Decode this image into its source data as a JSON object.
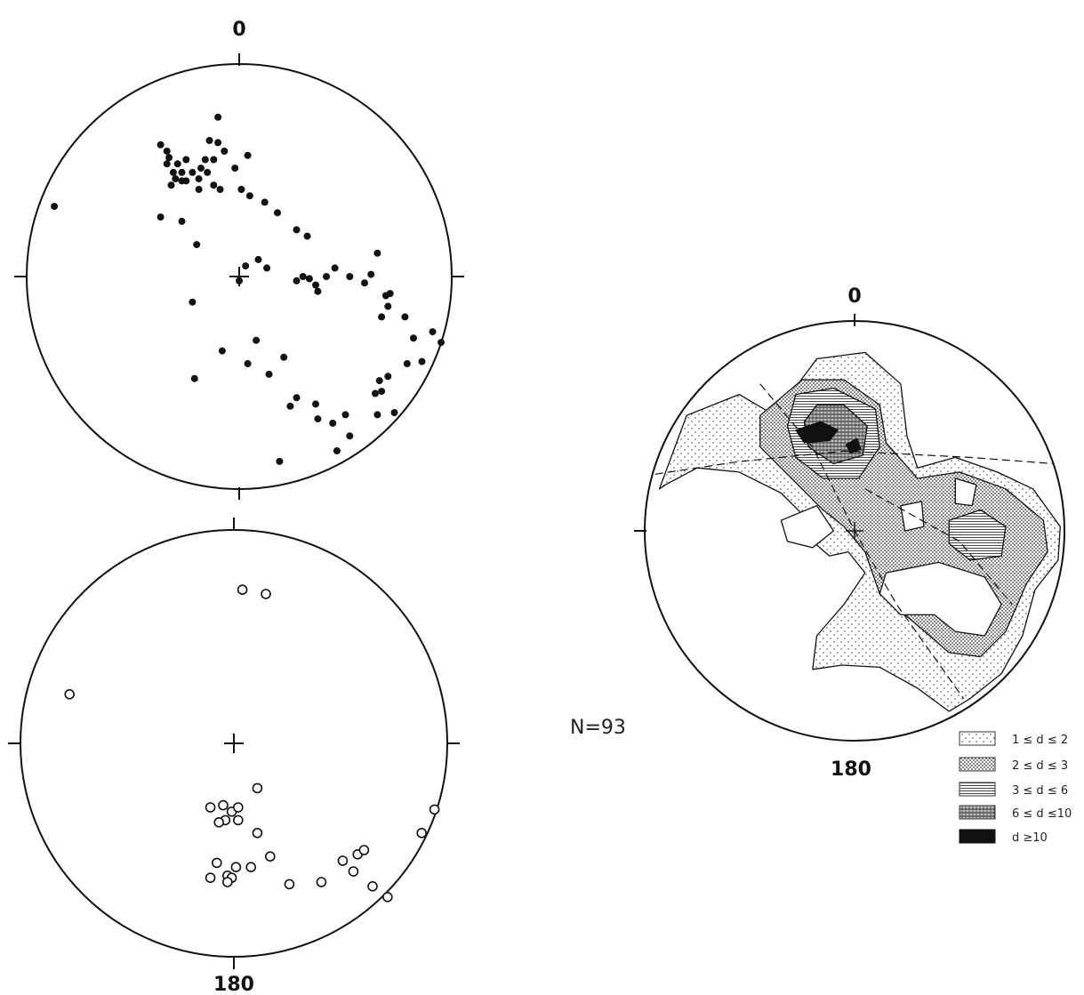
{
  "chart_data": [
    {
      "type": "scatter",
      "marker": "filled-dot",
      "labels": {
        "top": "0"
      },
      "points": [
        [
          -0.87,
          -0.33
        ],
        [
          -0.37,
          -0.62
        ],
        [
          -0.34,
          -0.59
        ],
        [
          -0.33,
          -0.56
        ],
        [
          -0.34,
          -0.53
        ],
        [
          -0.29,
          -0.53
        ],
        [
          -0.25,
          -0.55
        ],
        [
          -0.31,
          -0.49
        ],
        [
          -0.27,
          -0.49
        ],
        [
          -0.22,
          -0.49
        ],
        [
          -0.18,
          -0.51
        ],
        [
          -0.27,
          -0.45
        ],
        [
          -0.32,
          -0.43
        ],
        [
          -0.3,
          -0.46
        ],
        [
          -0.25,
          -0.45
        ],
        [
          -0.19,
          -0.46
        ],
        [
          -0.15,
          -0.49
        ],
        [
          -0.12,
          -0.55
        ],
        [
          -0.1,
          -0.63
        ],
        [
          -0.07,
          -0.59
        ],
        [
          -0.14,
          -0.64
        ],
        [
          -0.1,
          -0.75
        ],
        [
          -0.16,
          -0.55
        ],
        [
          -0.12,
          -0.43
        ],
        [
          -0.02,
          -0.51
        ],
        [
          0.04,
          -0.57
        ],
        [
          -0.19,
          -0.41
        ],
        [
          -0.09,
          -0.41
        ],
        [
          0.01,
          -0.41
        ],
        [
          0.05,
          -0.38
        ],
        [
          0.12,
          -0.35
        ],
        [
          0.18,
          -0.3
        ],
        [
          -0.37,
          -0.28
        ],
        [
          -0.27,
          -0.26
        ],
        [
          -0.2,
          -0.15
        ],
        [
          0.32,
          -0.19
        ],
        [
          0.27,
          -0.22
        ],
        [
          0.03,
          -0.05
        ],
        [
          0.09,
          -0.08
        ],
        [
          0.0,
          0.02
        ],
        [
          0.13,
          -0.04
        ],
        [
          0.37,
          0.07
        ],
        [
          -0.22,
          0.12
        ],
        [
          0.27,
          0.02
        ],
        [
          0.3,
          0.0
        ],
        [
          0.33,
          0.01
        ],
        [
          0.36,
          0.04
        ],
        [
          0.41,
          0.0
        ],
        [
          0.45,
          -0.04
        ],
        [
          0.52,
          0.0
        ],
        [
          0.59,
          0.03
        ],
        [
          0.62,
          -0.01
        ],
        [
          0.65,
          -0.11
        ],
        [
          0.71,
          0.08
        ],
        [
          0.69,
          0.09
        ],
        [
          0.7,
          0.14
        ],
        [
          0.67,
          0.19
        ],
        [
          0.08,
          0.3
        ],
        [
          0.78,
          0.19
        ],
        [
          0.91,
          0.26
        ],
        [
          0.82,
          0.29
        ],
        [
          0.95,
          0.31
        ],
        [
          0.86,
          0.4
        ],
        [
          0.79,
          0.41
        ],
        [
          0.7,
          0.47
        ],
        [
          0.66,
          0.49
        ],
        [
          0.67,
          0.54
        ],
        [
          0.64,
          0.55
        ],
        [
          -0.08,
          0.35
        ],
        [
          0.21,
          0.38
        ],
        [
          -0.21,
          0.48
        ],
        [
          0.04,
          0.41
        ],
        [
          0.14,
          0.46
        ],
        [
          0.27,
          0.57
        ],
        [
          0.24,
          0.61
        ],
        [
          0.36,
          0.6
        ],
        [
          0.44,
          0.69
        ],
        [
          0.5,
          0.65
        ],
        [
          0.73,
          0.64
        ],
        [
          0.65,
          0.65
        ],
        [
          0.37,
          0.67
        ],
        [
          0.52,
          0.75
        ],
        [
          0.46,
          0.82
        ],
        [
          0.19,
          0.87
        ]
      ]
    },
    {
      "type": "scatter",
      "marker": "open-circle",
      "labels": {
        "bottom": "180"
      },
      "points": [
        [
          0.04,
          -0.72
        ],
        [
          0.15,
          -0.7
        ],
        [
          -0.77,
          -0.23
        ],
        [
          0.11,
          0.21
        ],
        [
          -0.11,
          0.3
        ],
        [
          -0.01,
          0.32
        ],
        [
          -0.05,
          0.29
        ],
        [
          0.02,
          0.3
        ],
        [
          -0.04,
          0.36
        ],
        [
          -0.07,
          0.37
        ],
        [
          0.02,
          0.36
        ],
        [
          0.11,
          0.42
        ],
        [
          0.17,
          0.53
        ],
        [
          0.08,
          0.58
        ],
        [
          0.01,
          0.58
        ],
        [
          -0.08,
          0.56
        ],
        [
          -0.11,
          0.63
        ],
        [
          -0.03,
          0.62
        ],
        [
          -0.01,
          0.63
        ],
        [
          -0.03,
          0.65
        ],
        [
          0.26,
          0.66
        ],
        [
          0.41,
          0.65
        ],
        [
          0.51,
          0.55
        ],
        [
          0.58,
          0.52
        ],
        [
          0.61,
          0.5
        ],
        [
          0.56,
          0.6
        ],
        [
          0.65,
          0.67
        ],
        [
          0.72,
          0.72
        ],
        [
          0.88,
          0.42
        ],
        [
          0.94,
          0.31
        ]
      ]
    },
    {
      "type": "contour",
      "n_label": "N=93",
      "labels": {
        "top": "0",
        "bottom": "180"
      },
      "legend": [
        {
          "label": "1 ≤ d ≤ 2",
          "pattern": "dots-sparse"
        },
        {
          "label": "2 ≤ d ≤ 3",
          "pattern": "dots-dense"
        },
        {
          "label": "3 ≤ d ≤ 6",
          "pattern": "hlines"
        },
        {
          "label": "6 ≤ d ≤10",
          "pattern": "crosshatch"
        },
        {
          "label": "d ≥10",
          "pattern": "solid"
        }
      ],
      "contours": [
        {
          "level": 1,
          "polygons": [
            [
              [
                -0.93,
                -0.2
              ],
              [
                -0.8,
                -0.55
              ],
              [
                -0.55,
                -0.65
              ],
              [
                -0.38,
                -0.55
              ],
              [
                -0.18,
                -0.82
              ],
              [
                0.05,
                -0.85
              ],
              [
                0.22,
                -0.7
              ],
              [
                0.25,
                -0.45
              ],
              [
                0.3,
                -0.3
              ],
              [
                0.48,
                -0.35
              ],
              [
                0.68,
                -0.28
              ],
              [
                0.85,
                -0.2
              ],
              [
                0.98,
                -0.02
              ],
              [
                0.97,
                0.14
              ],
              [
                0.86,
                0.28
              ],
              [
                0.8,
                0.5
              ],
              [
                0.7,
                0.68
              ],
              [
                0.55,
                0.8
              ],
              [
                0.45,
                0.86
              ],
              [
                0.3,
                0.75
              ],
              [
                0.12,
                0.65
              ],
              [
                -0.06,
                0.64
              ],
              [
                -0.2,
                0.66
              ],
              [
                -0.18,
                0.5
              ],
              [
                -0.05,
                0.35
              ],
              [
                0.05,
                0.2
              ],
              [
                -0.03,
                0.1
              ],
              [
                -0.12,
                0.12
              ],
              [
                -0.2,
                0.05
              ],
              [
                -0.25,
                -0.08
              ],
              [
                -0.35,
                -0.18
              ],
              [
                -0.55,
                -0.28
              ],
              [
                -0.75,
                -0.3
              ],
              [
                -0.9,
                -0.22
              ]
            ]
          ]
        },
        {
          "level": 2,
          "polygons": [
            [
              [
                -0.45,
                -0.55
              ],
              [
                -0.25,
                -0.72
              ],
              [
                -0.05,
                -0.72
              ],
              [
                0.12,
                -0.6
              ],
              [
                0.15,
                -0.42
              ],
              [
                0.3,
                -0.25
              ],
              [
                0.5,
                -0.28
              ],
              [
                0.72,
                -0.2
              ],
              [
                0.9,
                -0.05
              ],
              [
                0.92,
                0.1
              ],
              [
                0.82,
                0.25
              ],
              [
                0.72,
                0.48
              ],
              [
                0.6,
                0.6
              ],
              [
                0.45,
                0.58
              ],
              [
                0.3,
                0.45
              ],
              [
                0.12,
                0.3
              ],
              [
                0.05,
                0.1
              ],
              [
                -0.05,
                -0.02
              ],
              [
                -0.15,
                -0.1
              ],
              [
                -0.3,
                -0.25
              ],
              [
                -0.45,
                -0.4
              ]
            ]
          ]
        },
        {
          "level": 3,
          "polygons": [
            [
              [
                -0.28,
                -0.65
              ],
              [
                -0.1,
                -0.68
              ],
              [
                0.1,
                -0.58
              ],
              [
                0.12,
                -0.4
              ],
              [
                0.02,
                -0.25
              ],
              [
                -0.15,
                -0.25
              ],
              [
                -0.28,
                -0.35
              ],
              [
                -0.32,
                -0.5
              ]
            ],
            [
              [
                0.45,
                -0.05
              ],
              [
                0.6,
                -0.1
              ],
              [
                0.72,
                -0.02
              ],
              [
                0.7,
                0.12
              ],
              [
                0.55,
                0.14
              ],
              [
                0.45,
                0.06
              ]
            ]
          ]
        },
        {
          "level": 4,
          "polygons": [
            [
              [
                -0.18,
                -0.6
              ],
              [
                -0.05,
                -0.6
              ],
              [
                0.06,
                -0.5
              ],
              [
                0.04,
                -0.36
              ],
              [
                -0.1,
                -0.32
              ],
              [
                -0.22,
                -0.4
              ],
              [
                -0.24,
                -0.52
              ]
            ]
          ]
        },
        {
          "level": 5,
          "polygons": [
            [
              [
                -0.28,
                -0.48
              ],
              [
                -0.16,
                -0.52
              ],
              [
                -0.08,
                -0.48
              ],
              [
                -0.12,
                -0.43
              ],
              [
                -0.24,
                -0.42
              ]
            ],
            [
              [
                -0.04,
                -0.41
              ],
              [
                0.01,
                -0.44
              ],
              [
                0.03,
                -0.39
              ],
              [
                -0.02,
                -0.37
              ]
            ]
          ]
        }
      ],
      "holes": [
        [
          [
            0.15,
            0.2
          ],
          [
            0.4,
            0.15
          ],
          [
            0.62,
            0.22
          ],
          [
            0.7,
            0.35
          ],
          [
            0.62,
            0.5
          ],
          [
            0.48,
            0.48
          ],
          [
            0.38,
            0.4
          ],
          [
            0.22,
            0.4
          ],
          [
            0.12,
            0.3
          ]
        ],
        [
          [
            0.48,
            -0.25
          ],
          [
            0.58,
            -0.22
          ],
          [
            0.56,
            -0.12
          ],
          [
            0.48,
            -0.13
          ]
        ],
        [
          [
            0.22,
            -0.12
          ],
          [
            0.32,
            -0.14
          ],
          [
            0.33,
            -0.02
          ],
          [
            0.24,
            0.0
          ]
        ],
        [
          [
            -0.35,
            -0.05
          ],
          [
            -0.18,
            -0.12
          ],
          [
            -0.1,
            0.0
          ],
          [
            -0.2,
            0.08
          ],
          [
            -0.32,
            0.05
          ]
        ]
      ],
      "lines": [
        [
          [
            -0.95,
            -0.27
          ],
          [
            -0.55,
            -0.33
          ],
          [
            -0.05,
            -0.38
          ],
          [
            0.55,
            -0.35
          ],
          [
            0.95,
            -0.32
          ]
        ],
        [
          [
            -0.45,
            -0.7
          ],
          [
            -0.2,
            -0.4
          ],
          [
            0.0,
            0.0
          ],
          [
            0.2,
            0.35
          ],
          [
            0.52,
            0.8
          ]
        ],
        [
          [
            0.05,
            -0.2
          ],
          [
            0.5,
            0.05
          ],
          [
            0.75,
            0.35
          ]
        ]
      ]
    }
  ]
}
